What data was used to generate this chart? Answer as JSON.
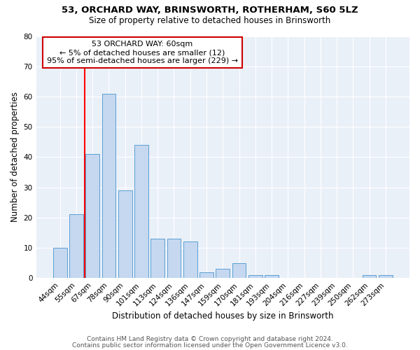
{
  "title1": "53, ORCHARD WAY, BRINSWORTH, ROTHERHAM, S60 5LZ",
  "title2": "Size of property relative to detached houses in Brinsworth",
  "xlabel": "Distribution of detached houses by size in Brinsworth",
  "ylabel": "Number of detached properties",
  "categories": [
    "44sqm",
    "55sqm",
    "67sqm",
    "78sqm",
    "90sqm",
    "101sqm",
    "113sqm",
    "124sqm",
    "136sqm",
    "147sqm",
    "159sqm",
    "170sqm",
    "181sqm",
    "193sqm",
    "204sqm",
    "216sqm",
    "227sqm",
    "239sqm",
    "250sqm",
    "262sqm",
    "273sqm"
  ],
  "values": [
    10,
    21,
    41,
    61,
    29,
    44,
    13,
    13,
    12,
    2,
    3,
    5,
    1,
    1,
    0,
    0,
    0,
    0,
    0,
    1,
    1
  ],
  "bar_color": "#c5d8f0",
  "bar_edge_color": "#5a9fd4",
  "red_line_x": 1.5,
  "annotation_line1": "53 ORCHARD WAY: 60sqm",
  "annotation_line2": "← 5% of detached houses are smaller (12)",
  "annotation_line3": "95% of semi-detached houses are larger (229) →",
  "annotation_box_color": "#ffffff",
  "annotation_box_edge_color": "#cc0000",
  "ylim": [
    0,
    80
  ],
  "yticks": [
    0,
    10,
    20,
    30,
    40,
    50,
    60,
    70,
    80
  ],
  "footer1": "Contains HM Land Registry data © Crown copyright and database right 2024.",
  "footer2": "Contains public sector information licensed under the Open Government Licence v3.0.",
  "bg_color": "#eaf0f8",
  "grid_color": "#ffffff",
  "title1_fontsize": 9.5,
  "title2_fontsize": 8.5,
  "axis_label_fontsize": 8.5,
  "tick_fontsize": 7.5,
  "annotation_fontsize": 8.0,
  "footer_fontsize": 6.5
}
